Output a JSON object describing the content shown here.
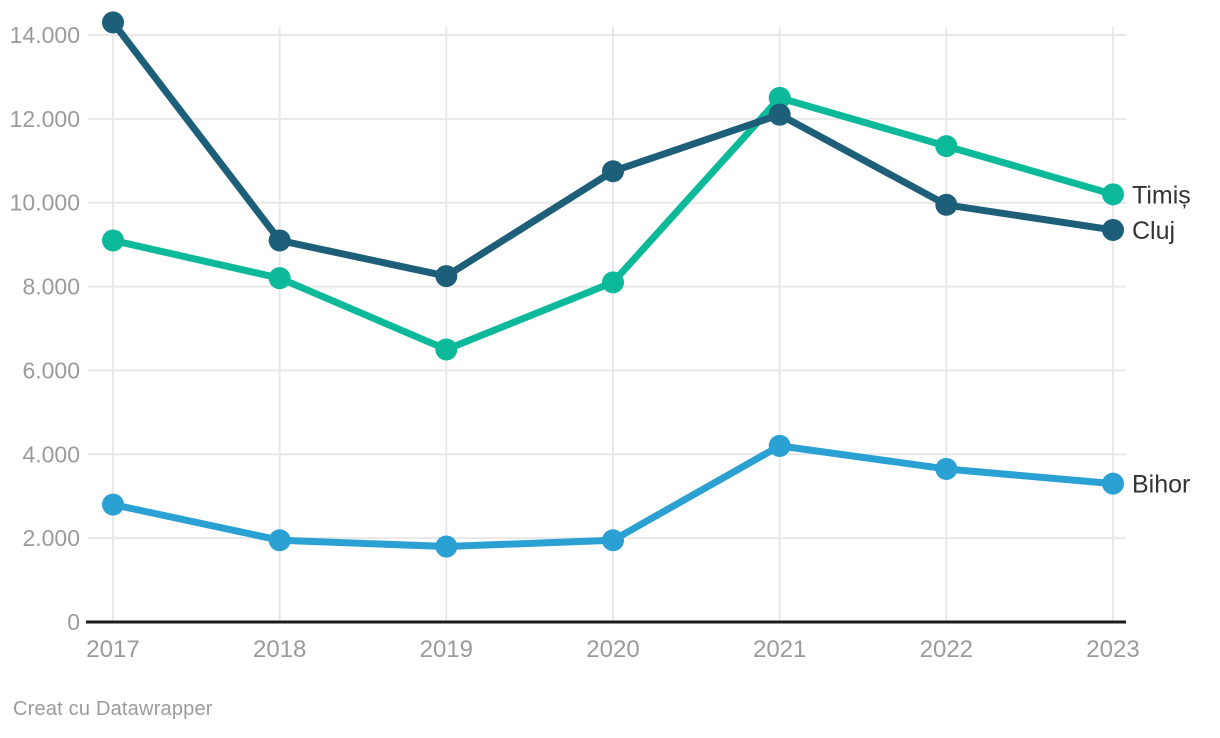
{
  "chart_data": {
    "type": "line",
    "x": [
      "2017",
      "2018",
      "2019",
      "2020",
      "2021",
      "2022",
      "2023"
    ],
    "series": [
      {
        "name": "Timiș",
        "slug": "timis",
        "color": "#0cba99",
        "values": [
          9100,
          8200,
          6500,
          8100,
          12500,
          11350,
          10200
        ]
      },
      {
        "name": "Cluj",
        "slug": "cluj",
        "color": "#1d5f78",
        "values": [
          14300,
          9100,
          8250,
          10750,
          12100,
          9950,
          9350
        ]
      },
      {
        "name": "Bihor",
        "slug": "bihor",
        "color": "#2aa1d2",
        "values": [
          2800,
          1950,
          1800,
          1950,
          4200,
          3650,
          3300
        ]
      }
    ],
    "y_ticks": [
      {
        "value": 0,
        "label": "0"
      },
      {
        "value": 2000,
        "label": "2.000"
      },
      {
        "value": 4000,
        "label": "4.000"
      },
      {
        "value": 6000,
        "label": "6.000"
      },
      {
        "value": 8000,
        "label": "8.000"
      },
      {
        "value": 10000,
        "label": "10.000"
      },
      {
        "value": 12000,
        "label": "12.000"
      },
      {
        "value": 14000,
        "label": "14.000"
      }
    ],
    "ylim": [
      0,
      14500
    ],
    "grid": true,
    "legend_position": "line-end-right"
  },
  "colors": {
    "tick_text": "#9b9b9b",
    "label_text": "#333333",
    "grid": "#e8e8e8",
    "axis": "#1a1a1a",
    "background": "#ffffff"
  },
  "footer": {
    "credit": "Creat cu Datawrapper"
  }
}
